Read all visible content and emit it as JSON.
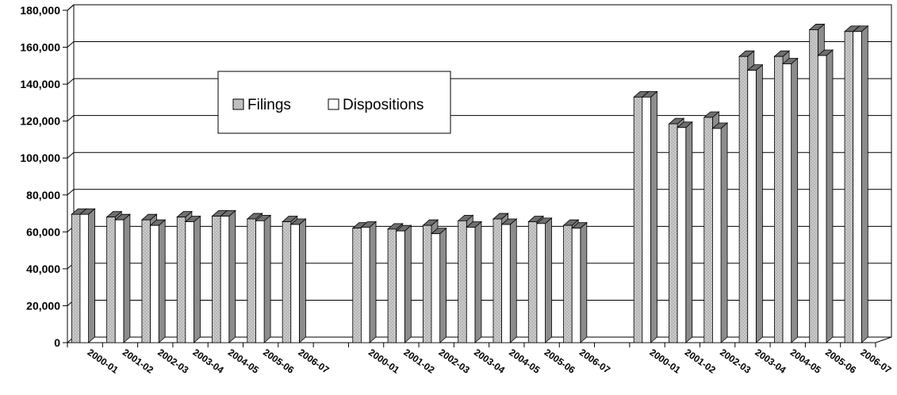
{
  "chart_data": {
    "type": "bar",
    "title": "",
    "xlabel": "",
    "ylabel": "",
    "ylim": [
      0,
      180000
    ],
    "yticks": [
      0,
      20000,
      40000,
      60000,
      80000,
      100000,
      120000,
      140000,
      160000,
      180000
    ],
    "ytick_labels": [
      "0",
      "20,000",
      "40,000",
      "60,000",
      "80,000",
      "100,000",
      "120,000",
      "140,000",
      "160,000",
      "180,000"
    ],
    "grid": true,
    "legend_placement": "upper-left inside plot",
    "style": "3d clustered columns",
    "categories": [
      "2000-01",
      "2001-02",
      "2002-03",
      "2003-04",
      "2004-05",
      "2005-06",
      "2006-07",
      "2000-01",
      "2001-02",
      "2002-03",
      "2003-04",
      "2004-05",
      "2005-06",
      "2006-07",
      "2000-01",
      "2001-02",
      "2002-03",
      "2003-04",
      "2004-05",
      "2005-06",
      "2006-07"
    ],
    "groups": [
      {
        "categories_index_range": [
          0,
          6
        ]
      },
      {
        "categories_index_range": [
          7,
          13
        ]
      },
      {
        "categories_index_range": [
          14,
          20
        ]
      }
    ],
    "series": [
      {
        "name": "Filings",
        "color": "#a6a6a6",
        "pattern": "dotted",
        "values": [
          69500,
          68000,
          66500,
          68000,
          68500,
          67000,
          65500,
          62000,
          61500,
          63500,
          66000,
          67000,
          65500,
          63500,
          133000,
          118500,
          122000,
          155000,
          155000,
          169500,
          168500
        ]
      },
      {
        "name": "Dispositions",
        "color": "#ffffff",
        "pattern": "solid",
        "values": [
          69500,
          66500,
          63500,
          65500,
          68500,
          66000,
          64000,
          62500,
          60500,
          59000,
          62500,
          64000,
          64500,
          62000,
          133000,
          116500,
          116000,
          147500,
          151000,
          155500,
          168500
        ]
      }
    ]
  }
}
